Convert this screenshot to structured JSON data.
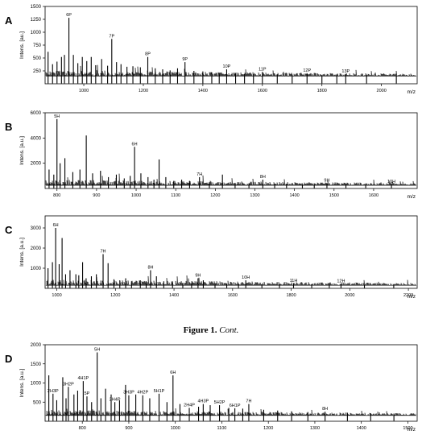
{
  "caption": {
    "bold": "Figure 1.",
    "italic": "Cont."
  },
  "chart_data": [
    {
      "panel": "A",
      "type": "bar",
      "ylabel": "Intens. [au.]",
      "xlabel": "m/z",
      "ylim": [
        0,
        1500
      ],
      "xlim": [
        870,
        2120
      ],
      "yticks": [
        250,
        500,
        750,
        1000,
        1250,
        1500
      ],
      "xticks": [
        1000,
        1200,
        1400,
        1600,
        1800,
        2000
      ],
      "baseline": 150,
      "peaks": [
        {
          "x": 880,
          "y": 620
        },
        {
          "x": 895,
          "y": 380
        },
        {
          "x": 910,
          "y": 430
        },
        {
          "x": 925,
          "y": 520
        },
        {
          "x": 935,
          "y": 560
        },
        {
          "x": 950,
          "y": 1280,
          "label": "6P"
        },
        {
          "x": 965,
          "y": 560
        },
        {
          "x": 980,
          "y": 400
        },
        {
          "x": 995,
          "y": 520
        },
        {
          "x": 1010,
          "y": 440
        },
        {
          "x": 1025,
          "y": 520
        },
        {
          "x": 1040,
          "y": 360
        },
        {
          "x": 1060,
          "y": 480
        },
        {
          "x": 1080,
          "y": 350
        },
        {
          "x": 1094,
          "y": 870,
          "label": "7P"
        },
        {
          "x": 1110,
          "y": 420
        },
        {
          "x": 1125,
          "y": 380
        },
        {
          "x": 1145,
          "y": 330
        },
        {
          "x": 1165,
          "y": 340
        },
        {
          "x": 1190,
          "y": 320
        },
        {
          "x": 1215,
          "y": 520,
          "label": "8P"
        },
        {
          "x": 1240,
          "y": 300
        },
        {
          "x": 1265,
          "y": 280
        },
        {
          "x": 1290,
          "y": 260
        },
        {
          "x": 1315,
          "y": 300
        },
        {
          "x": 1340,
          "y": 420,
          "label": "9P"
        },
        {
          "x": 1370,
          "y": 250
        },
        {
          "x": 1400,
          "y": 240
        },
        {
          "x": 1430,
          "y": 220
        },
        {
          "x": 1455,
          "y": 210
        },
        {
          "x": 1480,
          "y": 280,
          "label": "10P"
        },
        {
          "x": 1510,
          "y": 200
        },
        {
          "x": 1540,
          "y": 190
        },
        {
          "x": 1570,
          "y": 190
        },
        {
          "x": 1600,
          "y": 230,
          "label": "11P"
        },
        {
          "x": 1650,
          "y": 180
        },
        {
          "x": 1700,
          "y": 180
        },
        {
          "x": 1750,
          "y": 200,
          "label": "12P"
        },
        {
          "x": 1800,
          "y": 170
        },
        {
          "x": 1850,
          "y": 170
        },
        {
          "x": 1880,
          "y": 190,
          "label": "13P"
        },
        {
          "x": 1950,
          "y": 160
        },
        {
          "x": 2050,
          "y": 160
        }
      ]
    },
    {
      "panel": "B",
      "type": "bar",
      "ylabel": "Intens. [a.u.]",
      "xlabel": "m/z",
      "ylim": [
        0,
        6000
      ],
      "xlim": [
        770,
        1710
      ],
      "yticks": [
        2000,
        4000,
        6000
      ],
      "xticks": [
        800,
        900,
        1000,
        1100,
        1200,
        1300,
        1400,
        1500,
        1600
      ],
      "baseline": 250,
      "peaks": [
        {
          "x": 780,
          "y": 1500
        },
        {
          "x": 792,
          "y": 1100
        },
        {
          "x": 800,
          "y": 5500,
          "label": "5H"
        },
        {
          "x": 808,
          "y": 2000
        },
        {
          "x": 820,
          "y": 2400
        },
        {
          "x": 840,
          "y": 1300
        },
        {
          "x": 858,
          "y": 1500
        },
        {
          "x": 874,
          "y": 4200
        },
        {
          "x": 890,
          "y": 1200
        },
        {
          "x": 910,
          "y": 1400
        },
        {
          "x": 930,
          "y": 900
        },
        {
          "x": 950,
          "y": 1100
        },
        {
          "x": 970,
          "y": 800
        },
        {
          "x": 985,
          "y": 1000
        },
        {
          "x": 996,
          "y": 3300,
          "label": "6H"
        },
        {
          "x": 1012,
          "y": 1200
        },
        {
          "x": 1030,
          "y": 900
        },
        {
          "x": 1045,
          "y": 700
        },
        {
          "x": 1058,
          "y": 2300
        },
        {
          "x": 1075,
          "y": 900
        },
        {
          "x": 1095,
          "y": 600
        },
        {
          "x": 1115,
          "y": 700
        },
        {
          "x": 1135,
          "y": 600
        },
        {
          "x": 1160,
          "y": 900,
          "label": "7H"
        },
        {
          "x": 1185,
          "y": 500
        },
        {
          "x": 1218,
          "y": 1100
        },
        {
          "x": 1250,
          "y": 450
        },
        {
          "x": 1285,
          "y": 400
        },
        {
          "x": 1320,
          "y": 700,
          "label": "8H"
        },
        {
          "x": 1350,
          "y": 380
        },
        {
          "x": 1380,
          "y": 350
        },
        {
          "x": 1420,
          "y": 320
        },
        {
          "x": 1450,
          "y": 300
        },
        {
          "x": 1482,
          "y": 400,
          "label": "9H"
        },
        {
          "x": 1530,
          "y": 300
        },
        {
          "x": 1580,
          "y": 290
        },
        {
          "x": 1645,
          "y": 330,
          "label": "10H"
        }
      ]
    },
    {
      "panel": "C",
      "type": "bar",
      "ylabel": "Intens. [a.u.]",
      "xlabel": "m/z",
      "ylim": [
        0,
        3600
      ],
      "xlim": [
        960,
        2230
      ],
      "yticks": [
        1000,
        2000,
        3000
      ],
      "xticks": [
        1000,
        1200,
        1400,
        1600,
        1800,
        2000,
        2200
      ],
      "baseline": 150,
      "peaks": [
        {
          "x": 970,
          "y": 1000
        },
        {
          "x": 985,
          "y": 1300
        },
        {
          "x": 996,
          "y": 3000,
          "label": "6H"
        },
        {
          "x": 1008,
          "y": 1200
        },
        {
          "x": 1018,
          "y": 2500
        },
        {
          "x": 1030,
          "y": 700
        },
        {
          "x": 1045,
          "y": 900
        },
        {
          "x": 1065,
          "y": 700
        },
        {
          "x": 1075,
          "y": 650
        },
        {
          "x": 1088,
          "y": 1300
        },
        {
          "x": 1100,
          "y": 500
        },
        {
          "x": 1118,
          "y": 600
        },
        {
          "x": 1135,
          "y": 700
        },
        {
          "x": 1158,
          "y": 1700,
          "label": "7H"
        },
        {
          "x": 1175,
          "y": 1250
        },
        {
          "x": 1195,
          "y": 450
        },
        {
          "x": 1215,
          "y": 400
        },
        {
          "x": 1235,
          "y": 500
        },
        {
          "x": 1255,
          "y": 350
        },
        {
          "x": 1285,
          "y": 400
        },
        {
          "x": 1305,
          "y": 350
        },
        {
          "x": 1320,
          "y": 900,
          "label": "8H"
        },
        {
          "x": 1340,
          "y": 600
        },
        {
          "x": 1365,
          "y": 350
        },
        {
          "x": 1395,
          "y": 300
        },
        {
          "x": 1430,
          "y": 280
        },
        {
          "x": 1460,
          "y": 270
        },
        {
          "x": 1482,
          "y": 500,
          "label": "9H"
        },
        {
          "x": 1500,
          "y": 400
        },
        {
          "x": 1540,
          "y": 250
        },
        {
          "x": 1580,
          "y": 230
        },
        {
          "x": 1620,
          "y": 250
        },
        {
          "x": 1645,
          "y": 400,
          "label": "10H"
        },
        {
          "x": 1700,
          "y": 200
        },
        {
          "x": 1760,
          "y": 200
        },
        {
          "x": 1808,
          "y": 250,
          "label": "11H"
        },
        {
          "x": 1870,
          "y": 190
        },
        {
          "x": 1930,
          "y": 180
        },
        {
          "x": 1970,
          "y": 220,
          "label": "12H"
        },
        {
          "x": 2050,
          "y": 170
        },
        {
          "x": 2150,
          "y": 160
        }
      ]
    },
    {
      "panel": "D",
      "type": "bar",
      "ylabel": "Intens. [a.u.]",
      "xlabel": "m/z",
      "ylim": [
        0,
        2000
      ],
      "xlim": [
        720,
        1520
      ],
      "yticks": [
        500,
        1000,
        1500,
        2000
      ],
      "xticks": [
        800,
        900,
        1000,
        1100,
        1200,
        1300,
        1400,
        1500
      ],
      "baseline": 150,
      "peaks": [
        {
          "x": 728,
          "y": 1200
        },
        {
          "x": 737,
          "y": 720,
          "label": "2H3P"
        },
        {
          "x": 745,
          "y": 550
        },
        {
          "x": 758,
          "y": 1150
        },
        {
          "x": 765,
          "y": 600
        },
        {
          "x": 770,
          "y": 900,
          "label": "3H2P"
        },
        {
          "x": 782,
          "y": 700
        },
        {
          "x": 790,
          "y": 800
        },
        {
          "x": 802,
          "y": 1050,
          "label": "4H1P"
        },
        {
          "x": 810,
          "y": 650,
          "label": "5P"
        },
        {
          "x": 820,
          "y": 500
        },
        {
          "x": 832,
          "y": 1800,
          "label": "5H"
        },
        {
          "x": 840,
          "y": 600
        },
        {
          "x": 850,
          "y": 850
        },
        {
          "x": 862,
          "y": 700
        },
        {
          "x": 870,
          "y": 500,
          "label": "2H4P"
        },
        {
          "x": 880,
          "y": 550
        },
        {
          "x": 893,
          "y": 950
        },
        {
          "x": 900,
          "y": 680,
          "label": "3H3P"
        },
        {
          "x": 915,
          "y": 700
        },
        {
          "x": 930,
          "y": 680,
          "label": "4H2P"
        },
        {
          "x": 945,
          "y": 600
        },
        {
          "x": 965,
          "y": 720,
          "label": "5H1P"
        },
        {
          "x": 982,
          "y": 500
        },
        {
          "x": 995,
          "y": 1200,
          "label": "6H"
        },
        {
          "x": 1010,
          "y": 450
        },
        {
          "x": 1030,
          "y": 350,
          "label": "2H4P"
        },
        {
          "x": 1050,
          "y": 380
        },
        {
          "x": 1060,
          "y": 450,
          "label": "4H3P"
        },
        {
          "x": 1075,
          "y": 420
        },
        {
          "x": 1095,
          "y": 420,
          "label": "5H2P"
        },
        {
          "x": 1115,
          "y": 350
        },
        {
          "x": 1128,
          "y": 340,
          "label": "6H1P"
        },
        {
          "x": 1145,
          "y": 330
        },
        {
          "x": 1158,
          "y": 450,
          "label": "7H"
        },
        {
          "x": 1190,
          "y": 300
        },
        {
          "x": 1220,
          "y": 280
        },
        {
          "x": 1250,
          "y": 260
        },
        {
          "x": 1285,
          "y": 240
        },
        {
          "x": 1322,
          "y": 250,
          "label": "8H"
        },
        {
          "x": 1370,
          "y": 220
        },
        {
          "x": 1420,
          "y": 210
        },
        {
          "x": 1470,
          "y": 200
        }
      ]
    }
  ]
}
